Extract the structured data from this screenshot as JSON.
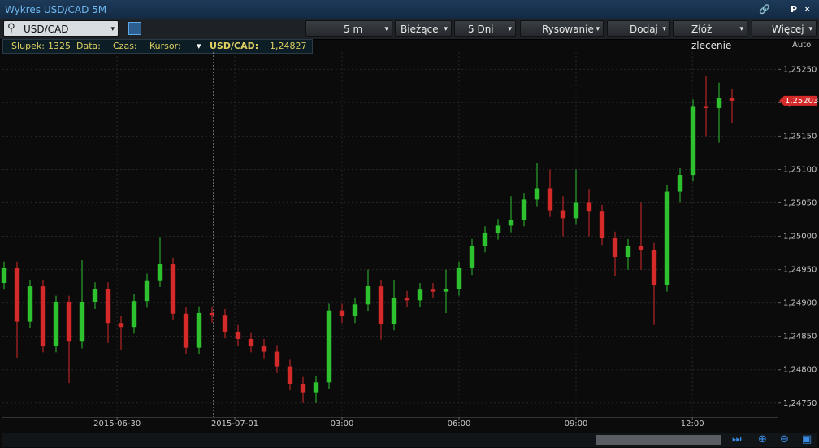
{
  "window": {
    "title": "Wykres USD/CAD 5M",
    "pin_label": "P"
  },
  "toolbar": {
    "symbol": "USD/CAD",
    "interval": "5 m",
    "mode": "Bieżące",
    "range": "5 Dni",
    "drawing": "Rysowanie",
    "add": "Dodaj",
    "order": "Złóż zlecenie",
    "more": "Więcej"
  },
  "info_bar": {
    "bar_label": "Słupek:",
    "bar_value": "1325",
    "date_label": "Data:",
    "time_label": "Czas:",
    "cursor_label": "Kursor:",
    "pair_label": "USD/CAD:",
    "pair_value": "1,24827"
  },
  "scale_mode": "Auto",
  "chart_data": {
    "type": "candlestick",
    "x": [
      0,
      1,
      2,
      3,
      4,
      5,
      6,
      7,
      8,
      9,
      10,
      11,
      12,
      13,
      14,
      15,
      16,
      17,
      18,
      19,
      20,
      21,
      22,
      23,
      24,
      25,
      26,
      27,
      28,
      29,
      30,
      31,
      32,
      33,
      34,
      35,
      36,
      37,
      38,
      39,
      40,
      41,
      42,
      43,
      44,
      45,
      46,
      47,
      48,
      49,
      50,
      51,
      52,
      53,
      54,
      55,
      56
    ],
    "open": [
      1.2493,
      1.24952,
      1.24872,
      1.24925,
      1.24836,
      1.24901,
      1.24842,
      1.24901,
      1.24921,
      1.2487,
      1.24864,
      1.24903,
      1.24934,
      1.24958,
      1.24884,
      1.24833,
      1.24885,
      1.24881,
      1.24857,
      1.24846,
      1.24836,
      1.24827,
      1.24805,
      1.24779,
      1.24766,
      1.24781,
      1.24889,
      1.2488,
      1.24898,
      1.24925,
      1.24869,
      1.24908,
      1.24904,
      1.2492,
      1.24917,
      1.24921,
      1.24952,
      1.24986,
      1.25005,
      1.25016,
      1.25025,
      1.25055,
      1.25072,
      1.25039,
      1.25027,
      1.2505,
      1.25037,
      1.24997,
      1.24969,
      1.24986,
      1.2498,
      1.24927,
      1.25067,
      1.25092,
      1.25195,
      1.25192,
      1.25207
    ],
    "high": [
      1.24962,
      1.24962,
      1.24935,
      1.24935,
      1.24911,
      1.24911,
      1.24964,
      1.24931,
      1.24931,
      1.2488,
      1.24913,
      1.24944,
      1.24998,
      1.24968,
      1.24894,
      1.24895,
      1.24895,
      1.24891,
      1.24867,
      1.24856,
      1.24846,
      1.24837,
      1.24815,
      1.24789,
      1.24791,
      1.24899,
      1.24899,
      1.24908,
      1.2495,
      1.24935,
      1.24935,
      1.24918,
      1.2493,
      1.2493,
      1.2495,
      1.24962,
      1.24996,
      1.25015,
      1.25026,
      1.2506,
      1.25065,
      1.2511,
      1.251,
      1.2506,
      1.251,
      1.2507,
      1.25047,
      1.25007,
      1.24996,
      1.2505,
      1.2499,
      1.25077,
      1.25102,
      1.25205,
      1.2524,
      1.2523,
      1.2522
    ],
    "low": [
      1.2492,
      1.24818,
      1.24862,
      1.24826,
      1.24826,
      1.2478,
      1.24832,
      1.24891,
      1.2484,
      1.2483,
      1.24854,
      1.24893,
      1.24924,
      1.24874,
      1.24823,
      1.24823,
      1.24871,
      1.24847,
      1.24836,
      1.24826,
      1.24817,
      1.24795,
      1.24769,
      1.2475,
      1.2475,
      1.24771,
      1.2487,
      1.2487,
      1.24888,
      1.24845,
      1.24859,
      1.24894,
      1.24894,
      1.24907,
      1.24885,
      1.24911,
      1.24942,
      1.24976,
      1.24995,
      1.25006,
      1.25015,
      1.25045,
      1.25029,
      1.25,
      1.25017,
      1.25,
      1.24987,
      1.2494,
      1.2495,
      1.2495,
      1.24867,
      1.24917,
      1.2505,
      1.25082,
      1.2515,
      1.2514,
      1.2517
    ],
    "close": [
      1.24952,
      1.24872,
      1.24925,
      1.24836,
      1.24901,
      1.24842,
      1.24901,
      1.24921,
      1.2487,
      1.24864,
      1.24903,
      1.24934,
      1.24958,
      1.24884,
      1.24833,
      1.24885,
      1.24881,
      1.24857,
      1.24846,
      1.24836,
      1.24827,
      1.24805,
      1.24779,
      1.24766,
      1.24781,
      1.24889,
      1.2488,
      1.24898,
      1.24925,
      1.24869,
      1.24908,
      1.24904,
      1.2492,
      1.24917,
      1.24921,
      1.24952,
      1.24986,
      1.25005,
      1.25016,
      1.25025,
      1.25055,
      1.25072,
      1.25039,
      1.25027,
      1.2505,
      1.25037,
      1.24997,
      1.24969,
      1.24986,
      1.2498,
      1.24927,
      1.25067,
      1.25092,
      1.25195,
      1.25192,
      1.25207,
      1.25203
    ],
    "up_color": "#2fc22f",
    "down_color": "#d42a2a",
    "current_price": {
      "value": 1.25203,
      "label": "1,25203"
    },
    "xlim": [
      -0.125,
      59.5
    ],
    "xticks": [
      {
        "value": 8.7,
        "label": "2015-06-30"
      },
      {
        "value": 17.75,
        "label": "2015-07-01"
      },
      {
        "value": 26,
        "label": "03:00"
      },
      {
        "value": 35,
        "label": "06:00"
      },
      {
        "value": 44,
        "label": "09:00"
      },
      {
        "value": 52.95,
        "label": "12:00"
      }
    ],
    "ylim": [
      1.24729,
      1.25276
    ],
    "yticks": [
      {
        "value": 1.2475,
        "label": "1,24750"
      },
      {
        "value": 1.248,
        "label": "1,24800"
      },
      {
        "value": 1.2485,
        "label": "1,24850"
      },
      {
        "value": 1.249,
        "label": "1,24900"
      },
      {
        "value": 1.2495,
        "label": "1,24950"
      },
      {
        "value": 1.25,
        "label": "1,25000"
      },
      {
        "value": 1.2505,
        "label": "1,25050"
      },
      {
        "value": 1.251,
        "label": "1,25100"
      },
      {
        "value": 1.2515,
        "label": "1,25150"
      },
      {
        "value": 1.252,
        "label": "1,25200"
      },
      {
        "value": 1.2525,
        "label": "1,25250"
      }
    ],
    "grid": true
  }
}
